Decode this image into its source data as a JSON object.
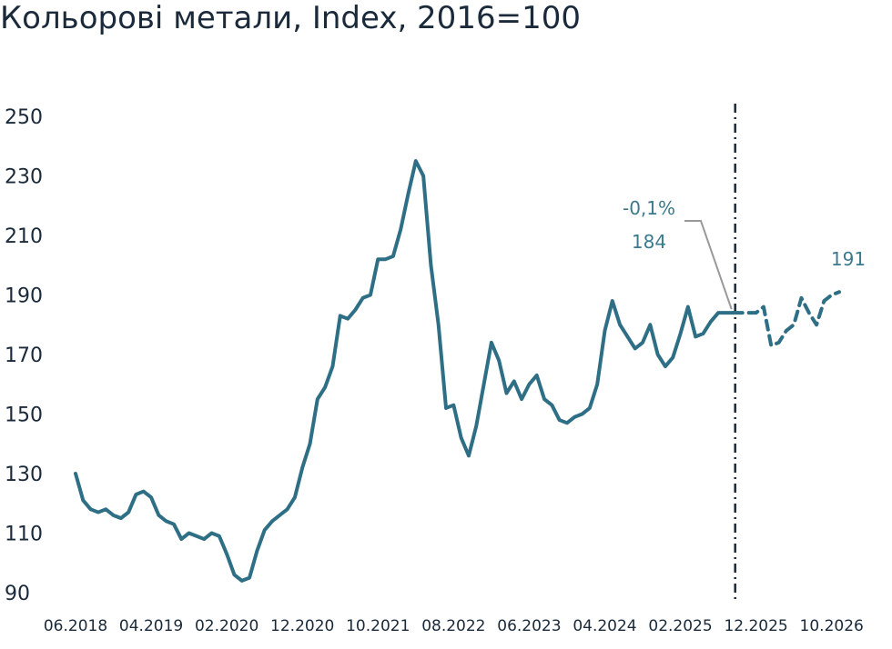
{
  "title": "Кольорові метали, Index, 2016=100",
  "chart_data": {
    "type": "line",
    "title": "Кольорові метали, Index, 2016=100",
    "ylim": [
      90,
      250
    ],
    "yticks": [
      "250",
      "230",
      "210",
      "190",
      "170",
      "150",
      "130",
      "110",
      "90"
    ],
    "xtick_labels": [
      "06.2018",
      "04.2019",
      "02.2020",
      "12.2020",
      "10.2021",
      "08.2022",
      "06.2023",
      "04.2024",
      "02.2025",
      "12.2025",
      "10.2026"
    ],
    "grid": false,
    "colors": {
      "line": "#2e6f86",
      "forecast_divider": "#1a2a3a",
      "leader": "#999999"
    },
    "series": [
      {
        "style": "solid",
        "x": [
          "06.2018",
          "07.2018",
          "08.2018",
          "09.2018",
          "10.2018",
          "11.2018",
          "12.2018",
          "01.2019",
          "02.2019",
          "03.2019",
          "04.2019",
          "05.2019",
          "06.2019",
          "07.2019",
          "08.2019",
          "09.2019",
          "10.2019",
          "11.2019",
          "12.2019",
          "01.2020",
          "02.2020",
          "03.2020",
          "04.2020",
          "05.2020",
          "06.2020",
          "07.2020",
          "08.2020",
          "09.2020",
          "10.2020",
          "11.2020",
          "12.2020",
          "01.2021",
          "02.2021",
          "03.2021",
          "04.2021",
          "05.2021",
          "06.2021",
          "07.2021",
          "08.2021",
          "09.2021",
          "10.2021",
          "11.2021",
          "12.2021",
          "01.2022",
          "02.2022",
          "03.2022",
          "04.2022",
          "05.2022",
          "06.2022",
          "07.2022",
          "08.2022",
          "09.2022",
          "10.2022",
          "11.2022",
          "12.2022",
          "01.2023",
          "02.2023",
          "03.2023",
          "04.2023",
          "05.2023",
          "06.2023",
          "07.2023",
          "08.2023",
          "09.2023",
          "10.2023",
          "11.2023",
          "12.2023",
          "01.2024",
          "02.2024",
          "03.2024",
          "04.2024",
          "05.2024",
          "06.2024",
          "07.2024",
          "08.2024",
          "09.2024",
          "10.2024",
          "11.2024",
          "12.2024",
          "01.2025",
          "02.2025",
          "03.2025",
          "04.2025",
          "05.2025",
          "06.2025",
          "07.2025",
          "08.2025",
          "09.2025"
        ],
        "values": [
          130,
          121,
          118,
          117,
          118,
          116,
          115,
          117,
          123,
          124,
          122,
          116,
          114,
          113,
          108,
          110,
          109,
          108,
          110,
          109,
          103,
          96,
          94,
          95,
          104,
          111,
          114,
          116,
          118,
          122,
          132,
          140,
          155,
          159,
          166,
          183,
          182,
          185,
          189,
          190,
          202,
          202,
          203,
          212,
          224,
          235,
          230,
          200,
          180,
          152,
          153,
          142,
          136,
          146,
          160,
          174,
          168,
          157,
          161,
          155,
          160,
          163,
          155,
          153,
          148,
          147,
          149,
          150,
          152,
          160,
          178,
          188,
          180,
          176,
          172,
          174,
          180,
          170,
          166,
          169,
          177,
          186,
          176,
          177,
          181,
          184,
          184,
          184
        ]
      },
      {
        "style": "dashed",
        "x": [
          "09.2025",
          "10.2025",
          "11.2025",
          "12.2025",
          "01.2026",
          "02.2026",
          "03.2026",
          "04.2026",
          "05.2026",
          "06.2026",
          "07.2026",
          "08.2026",
          "09.2026",
          "10.2026",
          "11.2026"
        ],
        "values": [
          184,
          184,
          184,
          184,
          186,
          173,
          174,
          178,
          180,
          189,
          184,
          180,
          188,
          190,
          191
        ]
      }
    ],
    "annotations": [
      {
        "text": "-0,1%",
        "x": "09.2025",
        "y": 184
      },
      {
        "text": "184",
        "x": "09.2025",
        "y": 184
      },
      {
        "text": "191",
        "x": "11.2026",
        "y": 191
      }
    ]
  }
}
